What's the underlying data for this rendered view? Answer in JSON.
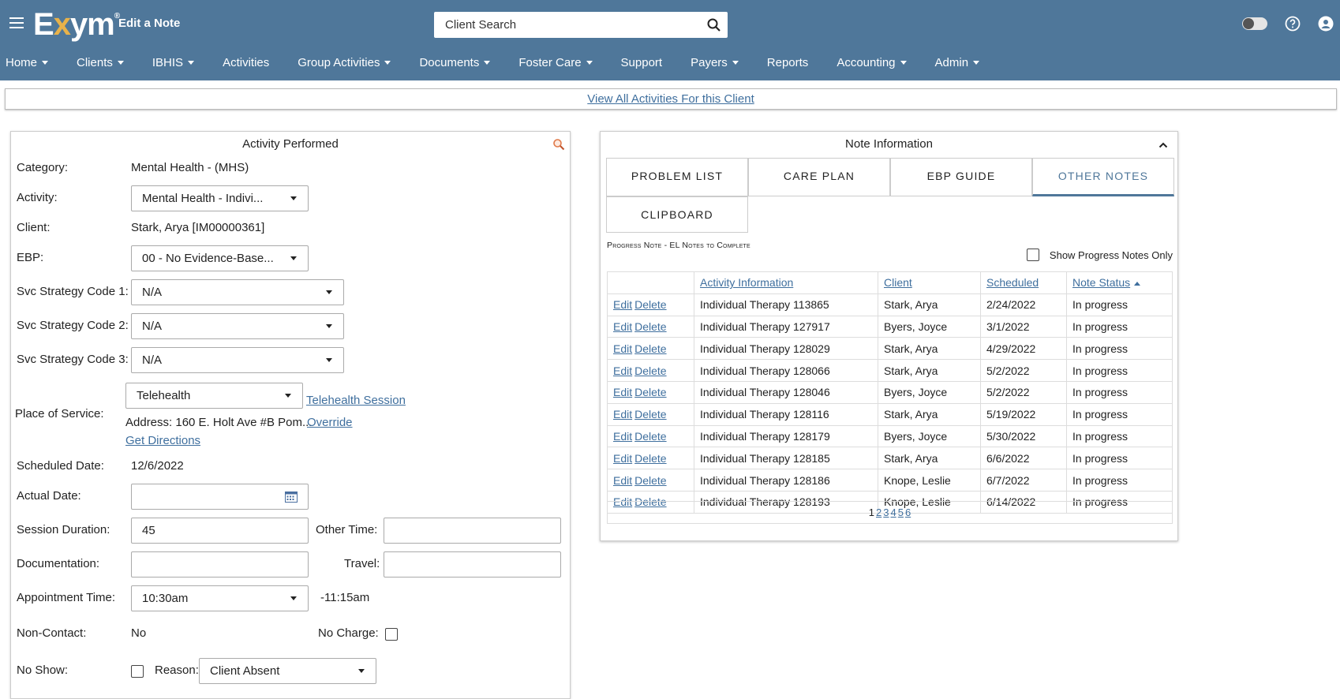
{
  "header": {
    "logo": "Exym",
    "page_title": "Edit a Note",
    "search": {
      "placeholder": "Client Search"
    }
  },
  "nav": [
    {
      "label": "Home",
      "dropdown": true
    },
    {
      "label": "Clients",
      "dropdown": true
    },
    {
      "label": "IBHIS",
      "dropdown": true
    },
    {
      "label": "Activities",
      "dropdown": false
    },
    {
      "label": "Group Activities",
      "dropdown": true
    },
    {
      "label": "Documents",
      "dropdown": true
    },
    {
      "label": "Foster Care",
      "dropdown": true
    },
    {
      "label": "Support",
      "dropdown": false
    },
    {
      "label": "Payers",
      "dropdown": true
    },
    {
      "label": "Reports",
      "dropdown": false
    },
    {
      "label": "Accounting",
      "dropdown": true
    },
    {
      "label": "Admin",
      "dropdown": true
    }
  ],
  "view_all_link": "View All Activities For this Client",
  "activity": {
    "title": "Activity Performed",
    "category_label": "Category:",
    "category_value": "Mental Health - (MHS)",
    "activity_label": "Activity:",
    "activity_value": "Mental Health - Indivi...",
    "client_label": "Client:",
    "client_value": "Stark, Arya [IM00000361]",
    "ebp_label": "EBP:",
    "ebp_value": "00 - No Evidence-Base...",
    "svc1_label": "Svc Strategy Code 1:",
    "svc1_value": "N/A",
    "svc2_label": "Svc Strategy Code 2:",
    "svc2_value": "N/A",
    "svc3_label": "Svc Strategy Code 3:",
    "svc3_value": "N/A",
    "place_label": "Place of Service:",
    "place_value": "Telehealth",
    "telehealth_link": "Telehealth Session",
    "address": "Address: 160 E. Holt Ave #B Pom...",
    "override_link": "Override",
    "directions_link": "Get Directions",
    "scheduled_label": "Scheduled Date:",
    "scheduled_value": "12/6/2022",
    "actual_label": "Actual Date:",
    "actual_value": "",
    "duration_label": "Session Duration:",
    "duration_value": "45",
    "other_time_label": "Other Time:",
    "other_time_value": "",
    "documentation_label": "Documentation:",
    "documentation_value": "",
    "travel_label": "Travel:",
    "travel_value": "",
    "appt_label": "Appointment Time:",
    "appt_value": "10:30am",
    "appt_end": "-11:15am",
    "noncontact_label": "Non-Contact:",
    "noncontact_value": "No",
    "nocharge_label": "No Charge:",
    "noshow_label": "No Show:",
    "reason_label": "Reason:",
    "reason_value": "Client Absent"
  },
  "note_info": {
    "title": "Note Information",
    "tabs": [
      "PROBLEM LIST",
      "CARE PLAN",
      "EBP GUIDE",
      "OTHER NOTES",
      "CLIPBOARD"
    ],
    "active_tab": "OTHER NOTES",
    "section_title": "Progress Note - EL Notes to Complete",
    "progress_only_label": "Show Progress Notes Only",
    "columns": [
      "Activity Information",
      "Client",
      "Scheduled",
      "Note Status"
    ],
    "edit_label": "Edit",
    "delete_label": "Delete",
    "rows": [
      {
        "activity": "Individual Therapy 113865",
        "client": "Stark, Arya",
        "scheduled": "2/24/2022",
        "status": "In progress"
      },
      {
        "activity": "Individual Therapy 127917",
        "client": "Byers, Joyce",
        "scheduled": "3/1/2022",
        "status": "In progress"
      },
      {
        "activity": "Individual Therapy 128029",
        "client": "Stark, Arya",
        "scheduled": "4/29/2022",
        "status": "In progress"
      },
      {
        "activity": "Individual Therapy 128066",
        "client": "Stark, Arya",
        "scheduled": "5/2/2022",
        "status": "In progress"
      },
      {
        "activity": "Individual Therapy 128046",
        "client": "Byers, Joyce",
        "scheduled": "5/2/2022",
        "status": "In progress"
      },
      {
        "activity": "Individual Therapy 128116",
        "client": "Stark, Arya",
        "scheduled": "5/19/2022",
        "status": "In progress"
      },
      {
        "activity": "Individual Therapy 128179",
        "client": "Byers, Joyce",
        "scheduled": "5/30/2022",
        "status": "In progress"
      },
      {
        "activity": "Individual Therapy 128185",
        "client": "Stark, Arya",
        "scheduled": "6/6/2022",
        "status": "In progress"
      },
      {
        "activity": "Individual Therapy 128186",
        "client": "Knope, Leslie",
        "scheduled": "6/7/2022",
        "status": "In progress"
      },
      {
        "activity": "Individual Therapy 128193",
        "client": "Knope, Leslie",
        "scheduled": "6/14/2022",
        "status": "In progress"
      }
    ],
    "pages": [
      "1",
      "2",
      "3",
      "4",
      "5",
      "6"
    ],
    "current_page": "1"
  },
  "colors": {
    "header_bg": "#4f779a",
    "link": "#3f6f9e",
    "logo_accent": "#e8b24a"
  },
  "icons": {
    "menu": "hamburger-icon",
    "search": "search-icon",
    "toggle": "toggle-icon",
    "help": "help-icon",
    "user": "user-icon",
    "calendar": "calendar-icon",
    "magnify": "magnify-icon",
    "collapse": "chevron-up-icon"
  }
}
